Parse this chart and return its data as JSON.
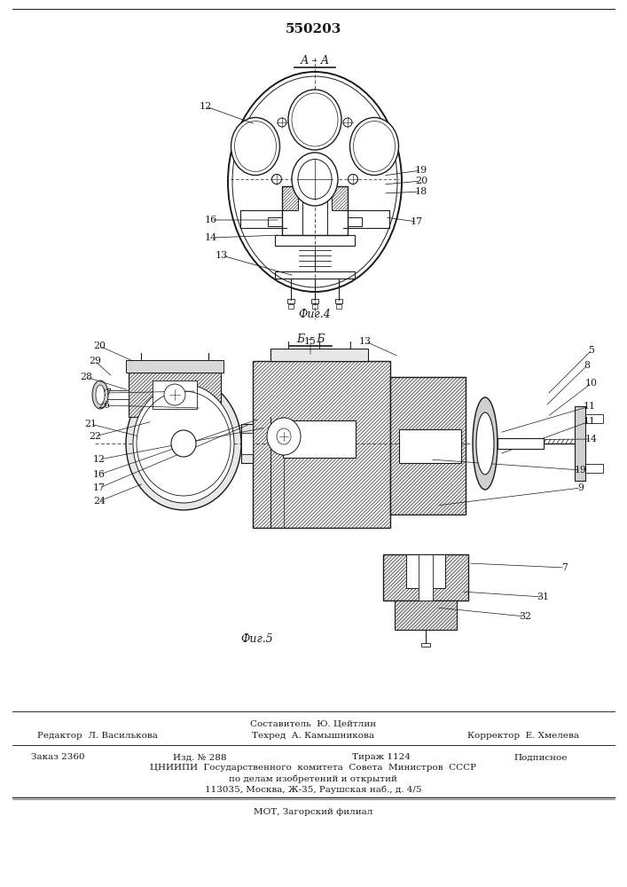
{
  "title": "550203",
  "fig4_label": "А – А",
  "fig5_label": "Б – Б",
  "fig4_caption": "Фиг.4",
  "fig5_caption": "Фиг.5",
  "footer_composer": "Составитель  Ю. Цейтлин",
  "footer_editor": "Редактор  Л. Василькова",
  "footer_tech": "Техред  А. Камышникова",
  "footer_corrector": "Корректор  Е. Хмелева",
  "footer_order": "Заказ 2360",
  "footer_izd": "Изд. № 288",
  "footer_tirazh": "Тираж 1124",
  "footer_podp": "Подписное",
  "footer_cnipi": "ЦНИИПИ  Государственного  комитета  Совета  Министров  СССР",
  "footer_dela": "по делам изобретений и открытий",
  "footer_addr": "113035, Москва, Ж-35, Раушская наб., д. 4/5",
  "footer_mot": "МОТ, Загорский филиал",
  "bg": "#ffffff",
  "lc": "#1a1a1a",
  "tc": "#1a1a1a"
}
